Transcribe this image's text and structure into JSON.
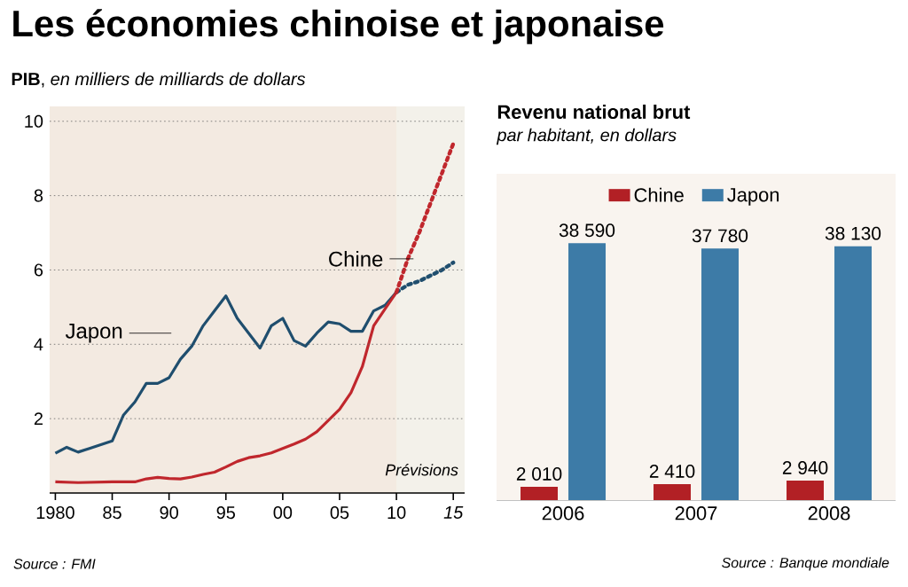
{
  "chart_data": [
    {
      "type": "line",
      "title": "Les économies chinoise et japonaise",
      "subtitle": "**PIB**, *en milliers de milliards de dollars*",
      "xlim": [
        1979.5,
        2016
      ],
      "ylim": [
        0,
        10.4
      ],
      "xticks": [
        {
          "value": 1980,
          "label": "1980"
        },
        {
          "value": 1985,
          "label": "85"
        },
        {
          "value": 1990,
          "label": "90"
        },
        {
          "value": 1995,
          "label": "95"
        },
        {
          "value": 2000,
          "label": "00"
        },
        {
          "value": 2005,
          "label": "05"
        },
        {
          "value": 2010,
          "label": "10"
        },
        {
          "value": 2015,
          "label": "15"
        }
      ],
      "yticks": [
        2,
        4,
        6,
        8,
        10
      ],
      "grid": "y",
      "bands": [
        {
          "axis": "x",
          "from": 2010,
          "to": 2016,
          "label": "Prévisions",
          "color": "#f3f1ea"
        }
      ],
      "series": [
        {
          "name": "Japon",
          "color": "#1f4e6e",
          "line_style": "solid",
          "x": [
            1980,
            1981,
            1982,
            1983,
            1984,
            1985,
            1986,
            1987,
            1988,
            1989,
            1990,
            1991,
            1992,
            1993,
            1994,
            1995,
            1996,
            1997,
            1998,
            1999,
            2000,
            2001,
            2002,
            2003,
            2004,
            2005,
            2006,
            2007,
            2008,
            2009,
            2010
          ],
          "values": [
            1.07,
            1.23,
            1.1,
            1.2,
            1.3,
            1.4,
            2.1,
            2.45,
            2.95,
            2.95,
            3.1,
            3.6,
            3.95,
            4.5,
            4.9,
            5.3,
            4.7,
            4.3,
            3.9,
            4.5,
            4.7,
            4.1,
            3.95,
            4.3,
            4.6,
            4.55,
            4.35,
            4.35,
            4.9,
            5.05,
            5.4
          ]
        },
        {
          "color": "#c0272d",
          "line_style": "solid",
          "x": [
            1980,
            1982,
            1985,
            1987,
            1988,
            1989,
            1990,
            1991,
            1992,
            1993,
            1994,
            1995,
            1996,
            1997,
            1998,
            1999,
            2000,
            2001,
            2002,
            2003,
            2004,
            2005,
            2006,
            2007,
            2008,
            2009,
            2010
          ],
          "values": [
            0.3,
            0.28,
            0.3,
            0.3,
            0.38,
            0.42,
            0.39,
            0.38,
            0.43,
            0.5,
            0.56,
            0.7,
            0.85,
            0.95,
            1.0,
            1.08,
            1.2,
            1.32,
            1.45,
            1.65,
            1.95,
            2.25,
            2.7,
            3.4,
            4.5,
            4.95,
            5.4
          ]
        },
        {
          "color": "#1f4e6e",
          "line_style": "dotted",
          "x": [
            2010,
            2011,
            2012,
            2013,
            2014,
            2015
          ],
          "values": [
            5.4,
            5.6,
            5.7,
            5.85,
            6.0,
            6.2
          ]
        },
        {
          "name": "Chine",
          "color": "#c0272d",
          "line_style": "dotted",
          "x": [
            2010,
            2011,
            2012,
            2013,
            2014,
            2015
          ],
          "values": [
            5.4,
            6.3,
            7.0,
            7.8,
            8.6,
            9.4
          ]
        }
      ],
      "annotations": [
        "Source : FMI"
      ]
    },
    {
      "type": "bar",
      "title": "Revenu national brut",
      "subtitle": "par habitant, en dollars",
      "categories": [
        "2006",
        "2007",
        "2008"
      ],
      "ylim": [
        0,
        49000
      ],
      "legend": "top",
      "series": [
        {
          "name": "Chine",
          "color": "#b22025",
          "values": [
            2010,
            2410,
            2940
          ],
          "value_labels": [
            "2 010",
            "2 410",
            "2 940"
          ]
        },
        {
          "name": "Japon",
          "color": "#3d7ba7",
          "values": [
            38590,
            37780,
            38130
          ],
          "value_labels": [
            "38 590",
            "37 780",
            "38 130"
          ]
        }
      ],
      "annotations": [
        "Source : Banque mondiale"
      ]
    }
  ]
}
